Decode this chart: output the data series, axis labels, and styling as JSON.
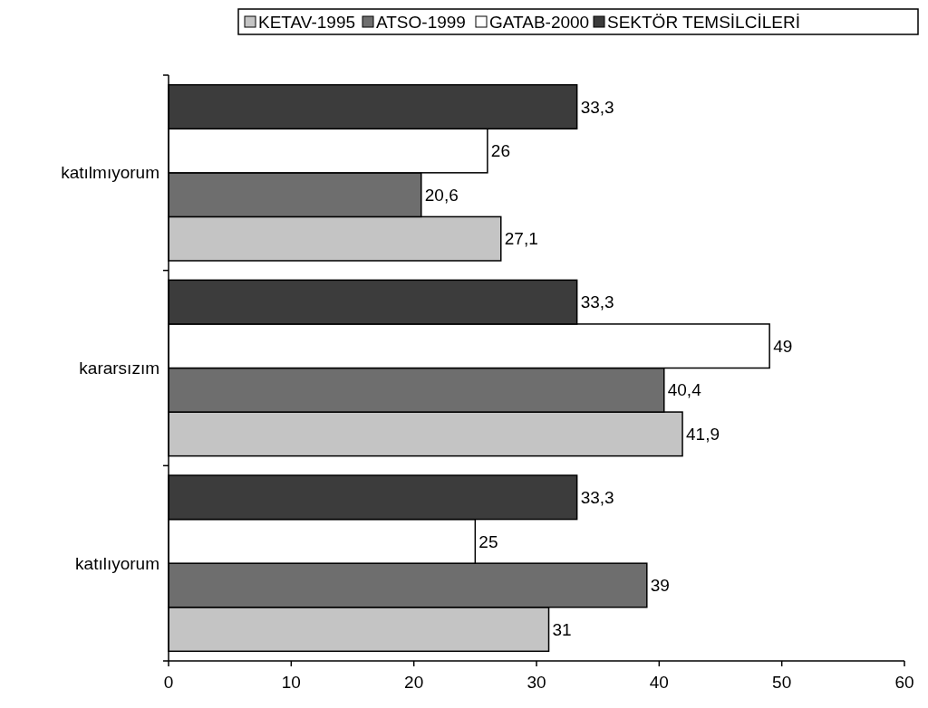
{
  "chart_data": {
    "type": "bar",
    "orientation": "horizontal",
    "categories": [
      "katılmıyorum",
      "kararsızım",
      "katılıyorum"
    ],
    "series": [
      {
        "name": "KETAV-1995",
        "color": "#c4c4c4",
        "values": [
          27.1,
          41.9,
          31
        ],
        "value_labels": [
          "27,1",
          "41,9",
          "31"
        ]
      },
      {
        "name": "ATSO-1999",
        "color": "#6e6e6e",
        "values": [
          20.6,
          40.4,
          39
        ],
        "value_labels": [
          "20,6",
          "40,4",
          "39"
        ]
      },
      {
        "name": "GATAB-2000",
        "color": "#ffffff",
        "values": [
          26,
          49,
          25
        ],
        "value_labels": [
          "26",
          "49",
          "25"
        ]
      },
      {
        "name": "SEKTÖR TEMSİLCİLERİ",
        "color": "#3c3c3c",
        "values": [
          33.3,
          33.3,
          33.3
        ],
        "value_labels": [
          "33,3",
          "33,3",
          "33,3"
        ]
      }
    ],
    "xlim": [
      0,
      60
    ],
    "xticks": [
      0,
      10,
      20,
      30,
      40,
      50,
      60
    ],
    "grid": false,
    "legend": "top"
  }
}
